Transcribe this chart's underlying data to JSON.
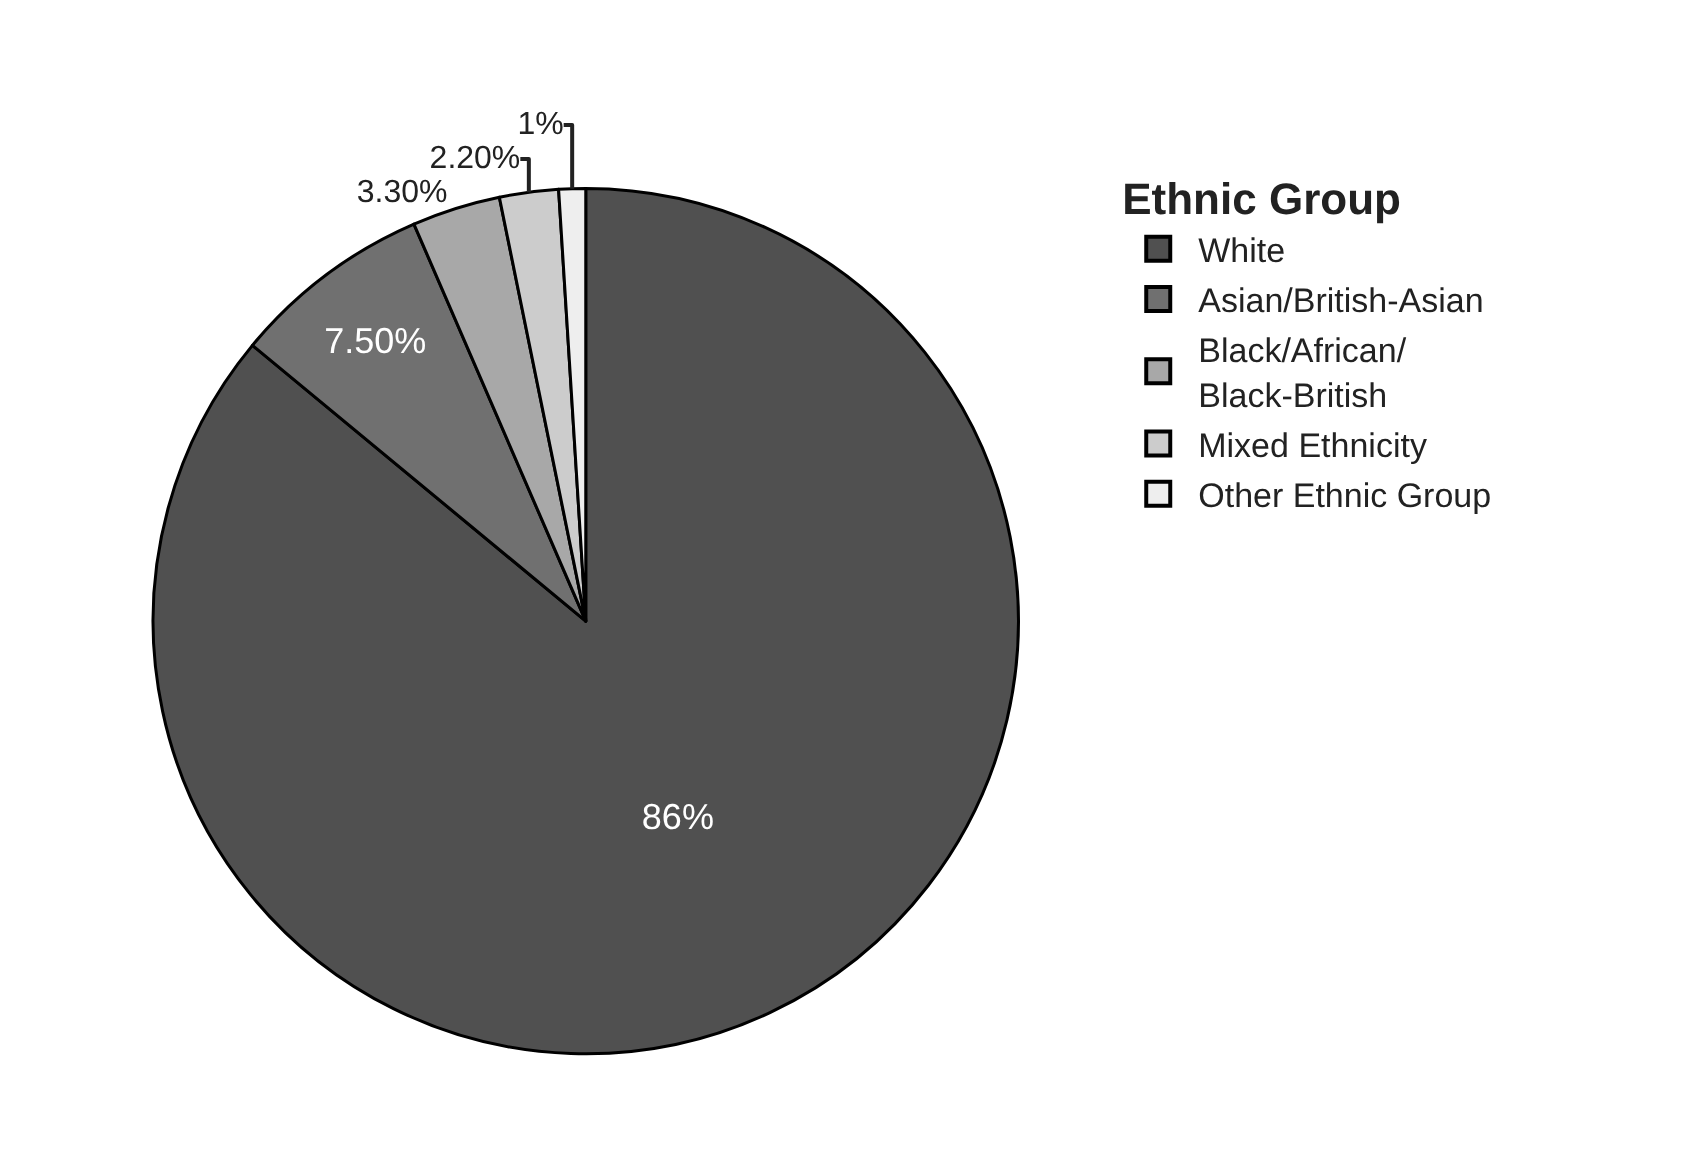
{
  "chart_data": {
    "type": "pie",
    "legend_title": "Ethnic Group",
    "categories": [
      "White",
      "Asian/British-Asian",
      "Black/African/Black-British",
      "Mixed Ethnicity",
      "Other Ethnic Group"
    ],
    "values": [
      86,
      7.5,
      3.3,
      2.2,
      1
    ],
    "value_labels": [
      "86%",
      "7.50%",
      "3.30%",
      "2.20%",
      "1%"
    ],
    "colors": [
      "#505050",
      "#707070",
      "#a8a8a8",
      "#cccccc",
      "#eeeeee"
    ],
    "legend": "right"
  }
}
